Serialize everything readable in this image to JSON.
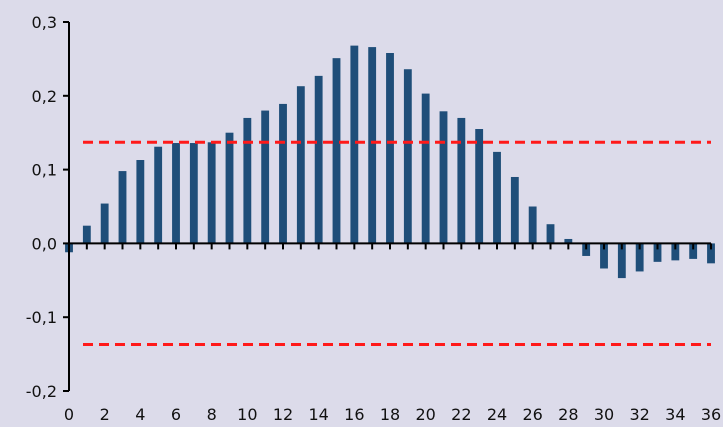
{
  "chart_data": {
    "type": "bar",
    "title": "",
    "xlabel": "",
    "ylabel": "",
    "x": [
      0,
      1,
      2,
      3,
      4,
      5,
      6,
      7,
      8,
      9,
      10,
      11,
      12,
      13,
      14,
      15,
      16,
      17,
      18,
      19,
      20,
      21,
      22,
      23,
      24,
      25,
      26,
      27,
      28,
      29,
      30,
      31,
      32,
      33,
      34,
      35,
      36
    ],
    "values": [
      -0.012,
      0.024,
      0.054,
      0.098,
      0.113,
      0.131,
      0.136,
      0.136,
      0.137,
      0.15,
      0.17,
      0.18,
      0.189,
      0.213,
      0.227,
      0.251,
      0.268,
      0.266,
      0.258,
      0.236,
      0.203,
      0.179,
      0.17,
      0.155,
      0.124,
      0.09,
      0.05,
      0.026,
      0.006,
      -0.017,
      -0.034,
      -0.047,
      -0.038,
      -0.025,
      -0.023,
      -0.021,
      -0.027
    ],
    "ylim": [
      -0.2,
      0.3
    ],
    "yticks": [
      -0.2,
      -0.1,
      0.0,
      0.1,
      0.2,
      0.3
    ],
    "ytick_labels": [
      "-0,2",
      "-0,1",
      "0,0",
      "0,1",
      "0,2",
      "0,3"
    ],
    "xlim": [
      0,
      36
    ],
    "xticks": [
      0,
      2,
      4,
      6,
      8,
      10,
      12,
      14,
      16,
      18,
      20,
      22,
      24,
      26,
      28,
      30,
      32,
      34,
      36
    ],
    "xtick_labels": [
      "0",
      "2",
      "4",
      "6",
      "8",
      "10",
      "12",
      "14",
      "16",
      "18",
      "20",
      "22",
      "24",
      "26",
      "28",
      "30",
      "32",
      "34",
      "36"
    ],
    "reference_lines": [
      0.137,
      -0.137
    ],
    "colors": {
      "background": "#dcdbea",
      "bar": "#1f4e79",
      "reference_line": "#ff1a1a",
      "axis": "#000000"
    },
    "grid": false,
    "legend": "none"
  }
}
